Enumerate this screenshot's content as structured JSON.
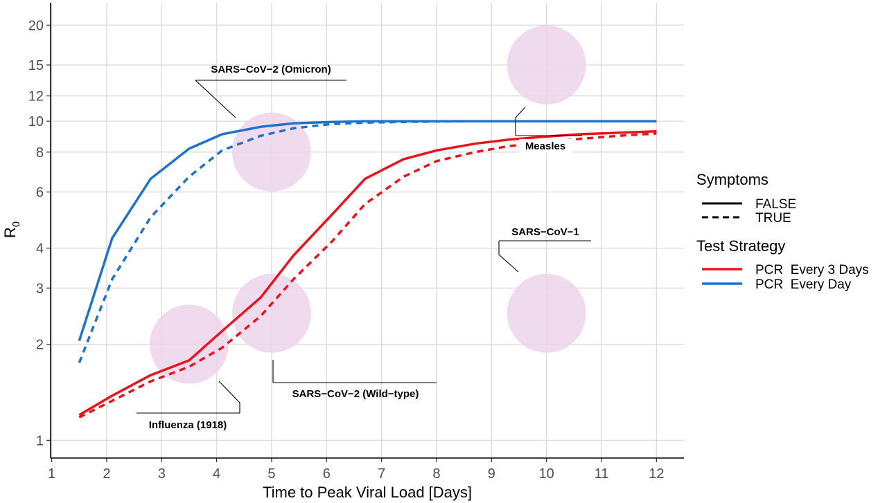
{
  "chart_data": {
    "type": "line",
    "xlabel": "Time to Peak Viral Load [Days]",
    "ylabel": "R",
    "ylabel_subscript": "0",
    "xlim": [
      0.98,
      12.5
    ],
    "ylim": [
      0.88,
      23.5
    ],
    "y_scale": "log",
    "grid": true,
    "x_ticks": [
      1,
      2,
      3,
      4,
      5,
      6,
      7,
      8,
      9,
      10,
      11,
      12
    ],
    "y_ticks": [
      1,
      2,
      3,
      4,
      6,
      8,
      10,
      12,
      15,
      20
    ],
    "colors": {
      "pcr3": "#e8141c",
      "pcr1": "#1f73c7",
      "bubble": "#ecd5ea",
      "grid": "#dcdcdc"
    },
    "series": [
      {
        "strategy": "PCR  Every 3 Days",
        "symptoms": "FALSE",
        "x": [
          1.5,
          2.1,
          2.8,
          3.5,
          4.1,
          4.8,
          5.4,
          6.1,
          6.7,
          7.4,
          8.0,
          8.7,
          9.3,
          10.0,
          10.6,
          11.3,
          12.0
        ],
        "y": [
          1.2,
          1.38,
          1.6,
          1.78,
          2.2,
          2.8,
          3.8,
          5.1,
          6.6,
          7.6,
          8.1,
          8.5,
          8.75,
          8.95,
          9.1,
          9.2,
          9.3
        ]
      },
      {
        "strategy": "PCR  Every 3 Days",
        "symptoms": "TRUE",
        "x": [
          1.5,
          2.1,
          2.8,
          3.5,
          4.1,
          4.8,
          5.4,
          6.1,
          6.7,
          7.4,
          8.0,
          8.7,
          9.3,
          10.0,
          10.6,
          11.3,
          12.0
        ],
        "y": [
          1.18,
          1.33,
          1.53,
          1.7,
          1.95,
          2.45,
          3.2,
          4.2,
          5.5,
          6.7,
          7.5,
          8.0,
          8.35,
          8.6,
          8.8,
          9.0,
          9.15
        ]
      },
      {
        "strategy": "PCR  Every Day",
        "symptoms": "FALSE",
        "x": [
          1.5,
          2.1,
          2.8,
          3.5,
          4.1,
          4.8,
          5.4,
          6.1,
          6.7,
          7.4,
          8.0,
          8.7,
          9.3,
          10.0,
          10.6,
          11.3,
          12.0
        ],
        "y": [
          2.05,
          4.3,
          6.6,
          8.2,
          9.1,
          9.6,
          9.85,
          9.95,
          10.0,
          10.0,
          10.0,
          10.0,
          10.0,
          10.0,
          10.0,
          10.0,
          10.0
        ]
      },
      {
        "strategy": "PCR  Every Day",
        "symptoms": "TRUE",
        "x": [
          1.5,
          2.1,
          2.8,
          3.5,
          4.1,
          4.8,
          5.4,
          6.1,
          6.7,
          7.4,
          8.0,
          8.7,
          9.3,
          10.0,
          10.6,
          11.3,
          12.0
        ],
        "y": [
          1.75,
          3.2,
          5.0,
          6.7,
          8.1,
          9.0,
          9.5,
          9.8,
          9.9,
          9.95,
          9.98,
          10.0,
          10.0,
          10.0,
          10.0,
          10.0,
          10.0
        ]
      }
    ],
    "bubbles": [
      {
        "name": "SARS−CoV−2 (Omicron)",
        "x": 5.0,
        "y": 8.0
      },
      {
        "name": "Measles",
        "x": 10.0,
        "y": 15.0
      },
      {
        "name": "SARS−CoV−1",
        "x": 10.0,
        "y": 2.5
      },
      {
        "name": "SARS−CoV−2 (Wild−type)",
        "x": 5.0,
        "y": 2.5
      },
      {
        "name": "Influenza (1918)",
        "x": 3.5,
        "y": 2.0
      }
    ],
    "legend": {
      "placement": "right",
      "symptoms_title": "Symptoms",
      "symptoms_items": [
        {
          "label": "FALSE",
          "linetype": "solid"
        },
        {
          "label": "TRUE",
          "linetype": "dashed"
        }
      ],
      "strategy_title": "Test Strategy",
      "strategy_items": [
        {
          "label": "PCR  Every 3 Days",
          "color": "#e8141c"
        },
        {
          "label": "PCR  Every Day",
          "color": "#1f73c7"
        }
      ]
    }
  }
}
